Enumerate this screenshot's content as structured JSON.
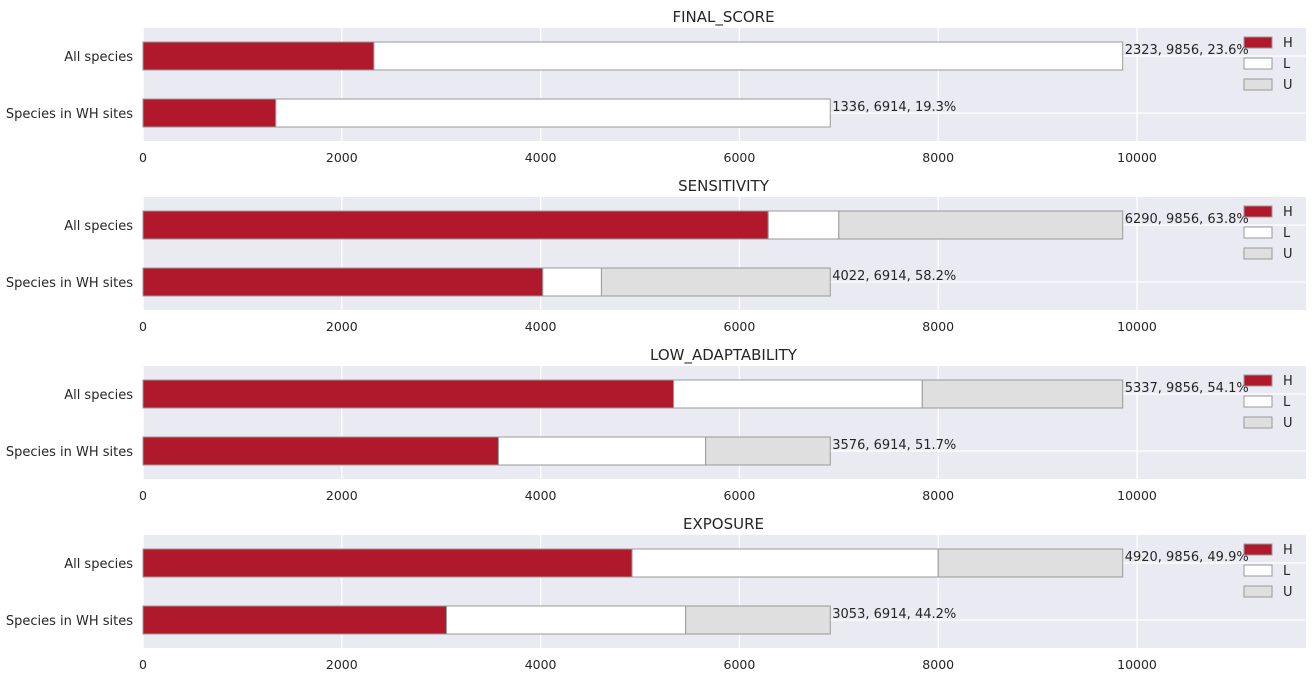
{
  "colors": {
    "plot_bg": "#EAEAF2",
    "grid": "#FFFFFF",
    "H": "#B0182B",
    "L": "#FFFFFF",
    "U": "#DFDFDF",
    "bar_edge": "#9A9A9A",
    "text": "#262626"
  },
  "chart_data": [
    {
      "type": "bar",
      "orientation": "horizontal",
      "stacked": true,
      "title": "FINAL_SCORE",
      "categories": [
        "All species",
        "Species in WH sites"
      ],
      "series": [
        {
          "name": "H",
          "values": [
            2323,
            1336
          ]
        },
        {
          "name": "L",
          "values": [
            7533,
            5578
          ]
        },
        {
          "name": "U",
          "values": [
            0,
            0
          ]
        }
      ],
      "totals": [
        9856,
        6914
      ],
      "annotations": [
        "2323, 9856, 23.6%",
        "1336, 6914, 19.3%"
      ],
      "xlim": [
        0,
        11700
      ],
      "xticks": [
        "0",
        "2000",
        "4000",
        "6000",
        "8000",
        "10000"
      ],
      "grid": true,
      "legend": "top-right"
    },
    {
      "type": "bar",
      "orientation": "horizontal",
      "stacked": true,
      "title": "SENSITIVITY",
      "categories": [
        "All species",
        "Species in WH sites"
      ],
      "series": [
        {
          "name": "H",
          "values": [
            6290,
            4022
          ]
        },
        {
          "name": "L",
          "values": [
            710,
            590
          ]
        },
        {
          "name": "U",
          "values": [
            2856,
            2302
          ]
        }
      ],
      "totals": [
        9856,
        6914
      ],
      "annotations": [
        "6290, 9856, 63.8%",
        "4022, 6914, 58.2%"
      ],
      "xlim": [
        0,
        11700
      ],
      "xticks": [
        "0",
        "2000",
        "4000",
        "6000",
        "8000",
        "10000"
      ],
      "grid": true,
      "legend": "top-right"
    },
    {
      "type": "bar",
      "orientation": "horizontal",
      "stacked": true,
      "title": "LOW_ADAPTABILITY",
      "categories": [
        "All species",
        "Species in WH sites"
      ],
      "series": [
        {
          "name": "H",
          "values": [
            5337,
            3576
          ]
        },
        {
          "name": "L",
          "values": [
            2503,
            2084
          ]
        },
        {
          "name": "U",
          "values": [
            2016,
            1254
          ]
        }
      ],
      "totals": [
        9856,
        6914
      ],
      "annotations": [
        "5337, 9856, 54.1%",
        "3576, 6914, 51.7%"
      ],
      "xlim": [
        0,
        11700
      ],
      "xticks": [
        "0",
        "2000",
        "4000",
        "6000",
        "8000",
        "10000"
      ],
      "grid": true,
      "legend": "top-right"
    },
    {
      "type": "bar",
      "orientation": "horizontal",
      "stacked": true,
      "title": "EXPOSURE",
      "categories": [
        "All species",
        "Species in WH sites"
      ],
      "series": [
        {
          "name": "H",
          "values": [
            4920,
            3053
          ]
        },
        {
          "name": "L",
          "values": [
            3080,
            2407
          ]
        },
        {
          "name": "U",
          "values": [
            1856,
            1454
          ]
        }
      ],
      "totals": [
        9856,
        6914
      ],
      "annotations": [
        "4920, 9856, 49.9%",
        "3053, 6914, 44.2%"
      ],
      "xlim": [
        0,
        11700
      ],
      "xticks": [
        "0",
        "2000",
        "4000",
        "6000",
        "8000",
        "10000"
      ],
      "grid": true,
      "legend": "top-right"
    }
  ]
}
